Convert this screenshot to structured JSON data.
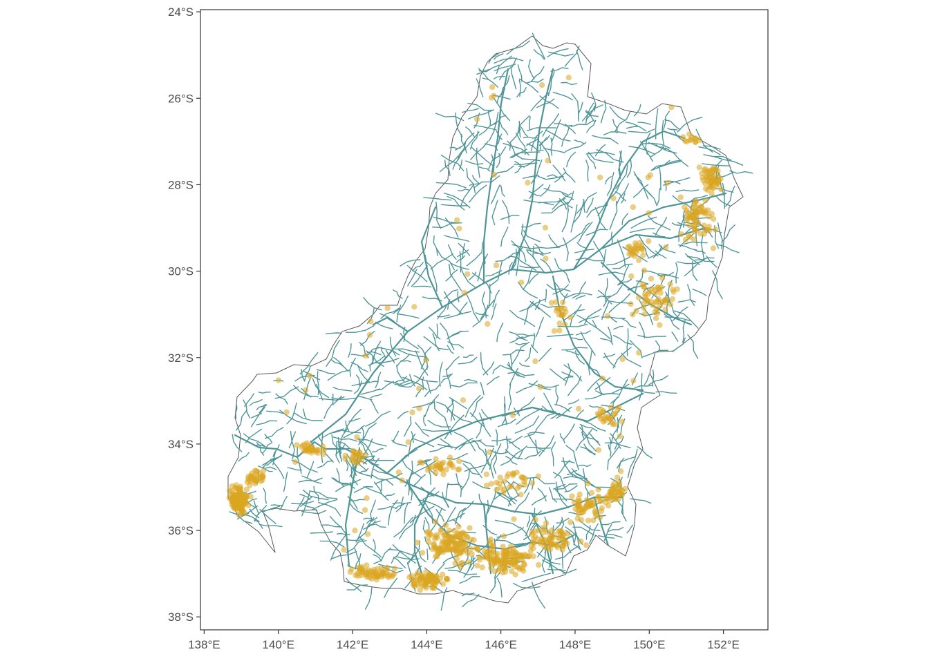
{
  "map": {
    "type": "map",
    "x_axis": {
      "ticks": [
        "138°E",
        "140°E",
        "142°E",
        "144°E",
        "146°E",
        "148°E",
        "150°E",
        "152°E"
      ],
      "range": [
        137.9,
        153.2
      ]
    },
    "y_axis": {
      "ticks": [
        "24°S",
        "26°S",
        "28°S",
        "30°S",
        "32°S",
        "34°S",
        "36°S",
        "38°S"
      ],
      "range": [
        -38.3,
        -23.95
      ]
    },
    "grid": false,
    "colors": {
      "boundary": "#555555",
      "rivers": "#4f9597",
      "points": "#DAA520",
      "axis": "#333333"
    }
  }
}
